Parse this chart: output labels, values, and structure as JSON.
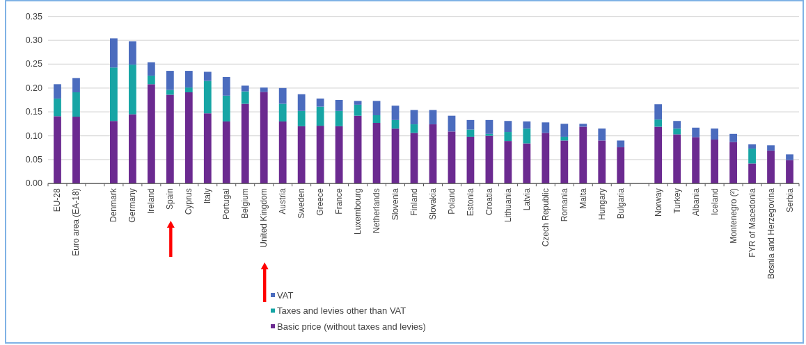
{
  "chart_data": {
    "type": "bar",
    "stacked": true,
    "categories": [
      "EU-28",
      "Euro area (EA-18)",
      null,
      "Denmark",
      "Germany",
      "Ireland",
      "Spain",
      "Cyprus",
      "Italy",
      "Portugal",
      "Belgium",
      "United Kingdom",
      "Austria",
      "Sweden",
      "Greece",
      "France",
      "Luxembourg",
      "Netherlands",
      "Slovenia",
      "Finland",
      "Slovakia",
      "Poland",
      "Estonia",
      "Croatia",
      "Lithuania",
      "Latvia",
      "Czech Republic",
      "Romania",
      "Malta",
      "Hungary",
      "Bulgaria",
      null,
      "Norway",
      "Turkey",
      "Albania",
      "Iceland",
      "Montenegro (²)",
      "FYR of Macedonia",
      "Bosnia and Herzegovina",
      "Serbia"
    ],
    "series": [
      {
        "name": "Basic price (without taxes and levies)",
        "color": "#6b2a90",
        "values": [
          0.141,
          0.14,
          null,
          0.131,
          0.145,
          0.208,
          0.186,
          0.191,
          0.147,
          0.13,
          0.167,
          0.192,
          0.13,
          0.12,
          0.121,
          0.12,
          0.142,
          0.127,
          0.115,
          0.106,
          0.124,
          0.109,
          0.098,
          0.1,
          0.089,
          0.084,
          0.106,
          0.09,
          0.119,
          0.09,
          0.076,
          null,
          0.119,
          0.103,
          0.097,
          0.092,
          0.087,
          0.042,
          0.069,
          0.049
        ]
      },
      {
        "name": "Taxes and levies other than VAT",
        "color": "#17a5a5",
        "values": [
          0.037,
          0.051,
          null,
          0.112,
          0.104,
          0.018,
          0.01,
          0.01,
          0.068,
          0.054,
          0.026,
          0,
          0.037,
          0.032,
          0.04,
          0.032,
          0.023,
          0.016,
          0.018,
          0.018,
          0,
          0,
          0.015,
          0.004,
          0.019,
          0.031,
          0,
          0.008,
          0,
          0,
          0,
          null,
          0.015,
          0.012,
          0,
          0,
          0,
          0.031,
          0,
          0
        ]
      },
      {
        "name": "VAT",
        "color": "#4b6cbe",
        "values": [
          0.03,
          0.03,
          null,
          0.061,
          0.049,
          0.028,
          0.04,
          0.035,
          0.019,
          0.039,
          0.012,
          0.009,
          0.033,
          0.035,
          0.017,
          0.023,
          0.008,
          0.03,
          0.03,
          0.03,
          0.03,
          0.033,
          0.02,
          0.029,
          0.023,
          0.015,
          0.022,
          0.027,
          0.006,
          0.025,
          0.014,
          null,
          0.032,
          0.016,
          0.02,
          0.023,
          0.017,
          0.009,
          0.011,
          0.012
        ]
      }
    ],
    "ylim": [
      0,
      0.35
    ],
    "yticks": [
      {
        "value": 0,
        "label": "0.00"
      },
      {
        "value": 0.05,
        "label": "0.05"
      },
      {
        "value": 0.1,
        "label": "0.10"
      },
      {
        "value": 0.15,
        "label": "0.15"
      },
      {
        "value": 0.2,
        "label": "0.20"
      },
      {
        "value": 0.25,
        "label": "0.25"
      },
      {
        "value": 0.3,
        "label": "0.30"
      },
      {
        "value": 0.35,
        "label": "0.35"
      }
    ],
    "grid": "y",
    "legend": "bottom"
  }
}
